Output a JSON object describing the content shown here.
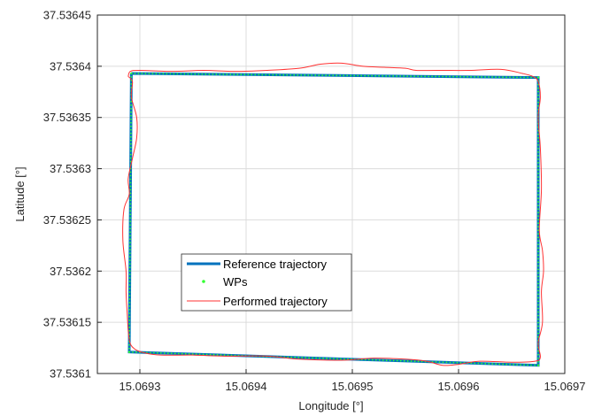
{
  "chart_data": {
    "type": "line",
    "title": "",
    "xlabel": "Longitude [°]",
    "ylabel": "Latitude [°]",
    "xlim": [
      15.06926,
      15.0697
    ],
    "ylim": [
      37.5361,
      37.53645
    ],
    "x_ticks": [
      15.0693,
      15.0694,
      15.0695,
      15.0696,
      15.0697
    ],
    "x_tick_labels": [
      "15.0693",
      "15.0694",
      "15.0695",
      "15.0696",
      "15.0697"
    ],
    "y_ticks": [
      37.5361,
      37.53615,
      37.5362,
      37.53625,
      37.5363,
      37.53635,
      37.5364,
      37.53645
    ],
    "y_tick_labels": [
      "37.5361",
      "37.53615",
      "37.5362",
      "37.53625",
      "37.5363",
      "37.53635",
      "37.5364",
      "37.53645"
    ],
    "grid": true,
    "legend_position": "lower-left",
    "series": [
      {
        "name": "Reference trajectory",
        "kind": "line",
        "color": "#0072BD",
        "x": [
          15.069292,
          15.069675,
          15.069675,
          15.06929,
          15.069292
        ],
        "y": [
          37.536393,
          37.536389,
          37.536108,
          37.536121,
          37.536393
        ]
      },
      {
        "name": "WPs",
        "kind": "points",
        "color": "#33ff33",
        "x": [
          15.069292,
          15.069675,
          15.069675,
          15.06929
        ],
        "y": [
          37.536393,
          37.536389,
          37.536108,
          37.536121
        ]
      },
      {
        "name": "Performed trajectory",
        "kind": "line",
        "color": "#ff3333",
        "x": [
          15.069289,
          15.069291,
          15.0693,
          15.06933,
          15.06936,
          15.06939,
          15.06942,
          15.06945,
          15.06947,
          15.06949,
          15.06951,
          15.06953,
          15.06955,
          15.06956,
          15.06958,
          15.06961,
          15.06964,
          15.06966,
          15.06967,
          15.069675,
          15.069677,
          15.069675,
          15.069677,
          15.069678,
          15.069676,
          15.069679,
          15.06968,
          15.069678,
          15.069679,
          15.069675,
          15.069677,
          15.069672,
          15.06965,
          15.06962,
          15.0696,
          15.069585,
          15.06957,
          15.06955,
          15.06952,
          15.06949,
          15.06945,
          15.06942,
          15.06938,
          15.06935,
          15.06932,
          15.069305,
          15.069295,
          15.06929,
          15.069288,
          15.069287,
          15.069287,
          15.069284,
          15.069285,
          15.06929,
          15.069289,
          15.069293,
          15.069297,
          15.069297,
          15.069292,
          15.069293,
          15.069289
        ],
        "y": [
          37.53639,
          37.536395,
          37.536396,
          37.536395,
          37.536396,
          37.536395,
          37.536396,
          37.536398,
          37.536402,
          37.536403,
          37.5364,
          37.536399,
          37.536398,
          37.536396,
          37.536396,
          37.536396,
          37.536397,
          37.536393,
          37.53639,
          37.536385,
          37.53637,
          37.53635,
          37.53632,
          37.53628,
          37.53624,
          37.53622,
          37.5362,
          37.53618,
          37.53615,
          37.53613,
          37.536116,
          37.536112,
          37.536111,
          37.536112,
          37.536109,
          37.536108,
          37.536112,
          37.536114,
          37.536115,
          37.536113,
          37.536114,
          37.536117,
          37.536117,
          37.536118,
          37.536118,
          37.53612,
          37.536124,
          37.536133,
          37.53616,
          37.53618,
          37.5362,
          37.53623,
          37.53626,
          37.536275,
          37.53629,
          37.53631,
          37.53633,
          37.53635,
          37.53637,
          37.536385,
          37.53639
        ]
      }
    ]
  }
}
